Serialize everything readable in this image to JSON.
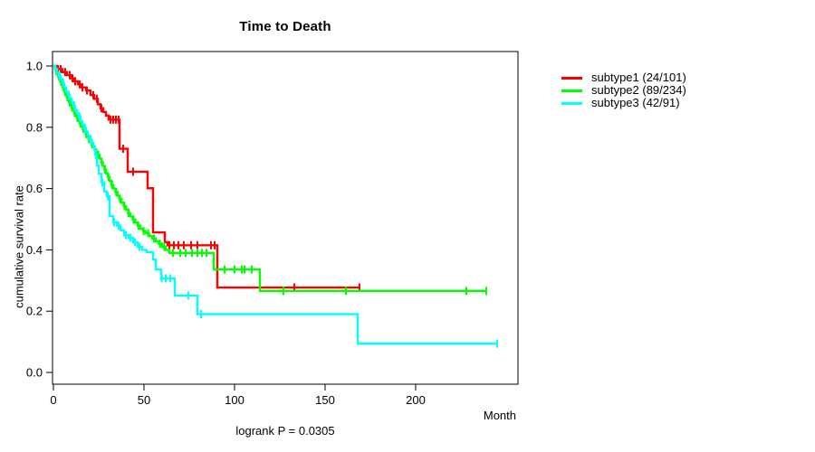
{
  "chart": {
    "title": "Time to Death",
    "x_axis_label": "Month",
    "y_axis_label": "cumulative survival rate",
    "footnote": "logrank P = 0.0305"
  },
  "legend": {
    "items": [
      {
        "label": "subtype1 (24/101)",
        "color": "#ff0000"
      },
      {
        "label": "subtype2 (89/234)",
        "color": "#00ff00"
      },
      {
        "label": "subtype3 (42/91)",
        "color": "#00ffff"
      }
    ]
  },
  "chart_data": {
    "type": "line",
    "subtype": "kaplan-meier-step",
    "title": "Time to Death",
    "xlabel": "Month",
    "ylabel": "cumulative survival rate",
    "annotation": "logrank P = 0.0305",
    "xlim": [
      0,
      257
    ],
    "ylim": [
      0,
      1
    ],
    "xticks": [
      0,
      50,
      100,
      150,
      200
    ],
    "yticks": [
      0,
      0.2,
      0.4,
      0.6,
      0.8,
      1.0
    ],
    "ytick_labels": [
      "0.0",
      "0.2",
      "0.4",
      "0.6",
      "0.8",
      "1.0"
    ],
    "grid": false,
    "legend_position": "right-outside",
    "censor_marker": "vertical-tick",
    "series": [
      {
        "id": "subtype1",
        "name": "subtype1 (24/101)",
        "color": "#ff0000",
        "points": [
          [
            0,
            1.0
          ],
          [
            2,
            0.99
          ],
          [
            5,
            0.98
          ],
          [
            7.5,
            0.97
          ],
          [
            9.5,
            0.96
          ],
          [
            11.5,
            0.95
          ],
          [
            13.5,
            0.94
          ],
          [
            15.5,
            0.93
          ],
          [
            18,
            0.92
          ],
          [
            20.5,
            0.905
          ],
          [
            22.5,
            0.893
          ],
          [
            24.5,
            0.875
          ],
          [
            26,
            0.862
          ],
          [
            27.5,
            0.85
          ],
          [
            29,
            0.838
          ],
          [
            30.5,
            0.825
          ],
          [
            36.5,
            0.73
          ],
          [
            41,
            0.655
          ],
          [
            52,
            0.601
          ],
          [
            55,
            0.457
          ],
          [
            61.5,
            0.425
          ],
          [
            63,
            0.415
          ],
          [
            90.5,
            0.277
          ]
        ],
        "censors": [
          2.5,
          4,
          6.5,
          9,
          10.5,
          12,
          14.5,
          16,
          18.5,
          22,
          24,
          26.5,
          31.5,
          33,
          34.5,
          36,
          38.5,
          44,
          64,
          66.5,
          69,
          72,
          76,
          79.5,
          87,
          89,
          133,
          169
        ],
        "end": 169
      },
      {
        "id": "subtype2",
        "name": "subtype2 (89/234)",
        "color": "#00ff00",
        "points": [
          [
            0,
            1.0
          ],
          [
            0.8,
            0.991
          ],
          [
            1.4,
            0.983
          ],
          [
            2,
            0.974
          ],
          [
            2.6,
            0.966
          ],
          [
            3.2,
            0.957
          ],
          [
            3.8,
            0.949
          ],
          [
            4.4,
            0.94
          ],
          [
            5,
            0.932
          ],
          [
            5.6,
            0.923
          ],
          [
            6.2,
            0.915
          ],
          [
            6.8,
            0.906
          ],
          [
            7.4,
            0.898
          ],
          [
            8,
            0.889
          ],
          [
            8.7,
            0.881
          ],
          [
            9.4,
            0.872
          ],
          [
            10.1,
            0.864
          ],
          [
            10.8,
            0.855
          ],
          [
            11.5,
            0.847
          ],
          [
            12.2,
            0.838
          ],
          [
            13,
            0.83
          ],
          [
            13.8,
            0.821
          ],
          [
            14.6,
            0.812
          ],
          [
            15.4,
            0.804
          ],
          [
            16.2,
            0.795
          ],
          [
            17,
            0.787
          ],
          [
            17.8,
            0.778
          ],
          [
            18.6,
            0.77
          ],
          [
            19.4,
            0.761
          ],
          [
            20.2,
            0.753
          ],
          [
            21,
            0.744
          ],
          [
            21.9,
            0.736
          ],
          [
            22.8,
            0.727
          ],
          [
            23.7,
            0.719
          ],
          [
            24.6,
            0.71
          ],
          [
            25.5,
            0.698
          ],
          [
            26.4,
            0.686
          ],
          [
            27.3,
            0.674
          ],
          [
            28.2,
            0.662
          ],
          [
            29.1,
            0.65
          ],
          [
            30,
            0.638
          ],
          [
            31,
            0.625
          ],
          [
            32,
            0.612
          ],
          [
            33.1,
            0.6
          ],
          [
            34.2,
            0.589
          ],
          [
            35.3,
            0.577
          ],
          [
            36.4,
            0.566
          ],
          [
            37.6,
            0.554
          ],
          [
            38.8,
            0.543
          ],
          [
            40,
            0.532
          ],
          [
            41.2,
            0.52
          ],
          [
            42.4,
            0.509
          ],
          [
            43.8,
            0.499
          ],
          [
            45.2,
            0.489
          ],
          [
            46.6,
            0.479
          ],
          [
            48,
            0.469
          ],
          [
            49.5,
            0.461
          ],
          [
            51,
            0.454
          ],
          [
            52.8,
            0.445
          ],
          [
            54.6,
            0.437
          ],
          [
            56.4,
            0.428
          ],
          [
            58.2,
            0.42
          ],
          [
            60,
            0.41
          ],
          [
            62,
            0.4
          ],
          [
            64,
            0.39
          ],
          [
            88.5,
            0.336
          ],
          [
            114,
            0.266
          ]
        ],
        "censors": [
          1.6,
          2.9,
          4.1,
          5.3,
          6.5,
          7.7,
          9,
          10.3,
          11.7,
          13.2,
          14.9,
          16.5,
          18.1,
          19.7,
          21.3,
          23,
          24.8,
          26.7,
          28.5,
          30.4,
          32.4,
          34.6,
          36.8,
          39.2,
          41.5,
          44.2,
          46.9,
          49.8,
          52.3,
          55.5,
          58.8,
          61.2,
          66,
          70,
          73,
          76.5,
          79.5,
          82,
          84.5,
          94.5,
          100,
          104,
          105.5,
          109.5,
          127,
          161.5,
          228,
          239
        ],
        "end": 239
      },
      {
        "id": "subtype3",
        "name": "subtype3 (42/91)",
        "color": "#00ffff",
        "points": [
          [
            0,
            1.0
          ],
          [
            1,
            0.989
          ],
          [
            2,
            0.978
          ],
          [
            3,
            0.967
          ],
          [
            4,
            0.956
          ],
          [
            5,
            0.944
          ],
          [
            6,
            0.93
          ],
          [
            7,
            0.916
          ],
          [
            8,
            0.905
          ],
          [
            9,
            0.894
          ],
          [
            10,
            0.883
          ],
          [
            11,
            0.869
          ],
          [
            12,
            0.856
          ],
          [
            13,
            0.845
          ],
          [
            14,
            0.833
          ],
          [
            15,
            0.82
          ],
          [
            16,
            0.809
          ],
          [
            17,
            0.797
          ],
          [
            18,
            0.785
          ],
          [
            19,
            0.773
          ],
          [
            20,
            0.761
          ],
          [
            21,
            0.749
          ],
          [
            22,
            0.737
          ],
          [
            23,
            0.71
          ],
          [
            24,
            0.675
          ],
          [
            25,
            0.648
          ],
          [
            26.5,
            0.62
          ],
          [
            28,
            0.591
          ],
          [
            29.5,
            0.575
          ],
          [
            31,
            0.51
          ],
          [
            33,
            0.49
          ],
          [
            35,
            0.479
          ],
          [
            37,
            0.464
          ],
          [
            39,
            0.448
          ],
          [
            41.5,
            0.439
          ],
          [
            44,
            0.425
          ],
          [
            46.5,
            0.41
          ],
          [
            49,
            0.4
          ],
          [
            51.5,
            0.393
          ],
          [
            55,
            0.369
          ],
          [
            56.5,
            0.336
          ],
          [
            59.5,
            0.307
          ],
          [
            67,
            0.251
          ],
          [
            79.5,
            0.19
          ],
          [
            168,
            0.094
          ]
        ],
        "censors": [
          3.5,
          5.5,
          8.5,
          11.5,
          14.5,
          17.5,
          20.5,
          23.5,
          27,
          30,
          33.5,
          36,
          40,
          42.5,
          45,
          47.5,
          59.8,
          62,
          64.5,
          74.5,
          81.5,
          245
        ],
        "end": 245
      }
    ]
  }
}
